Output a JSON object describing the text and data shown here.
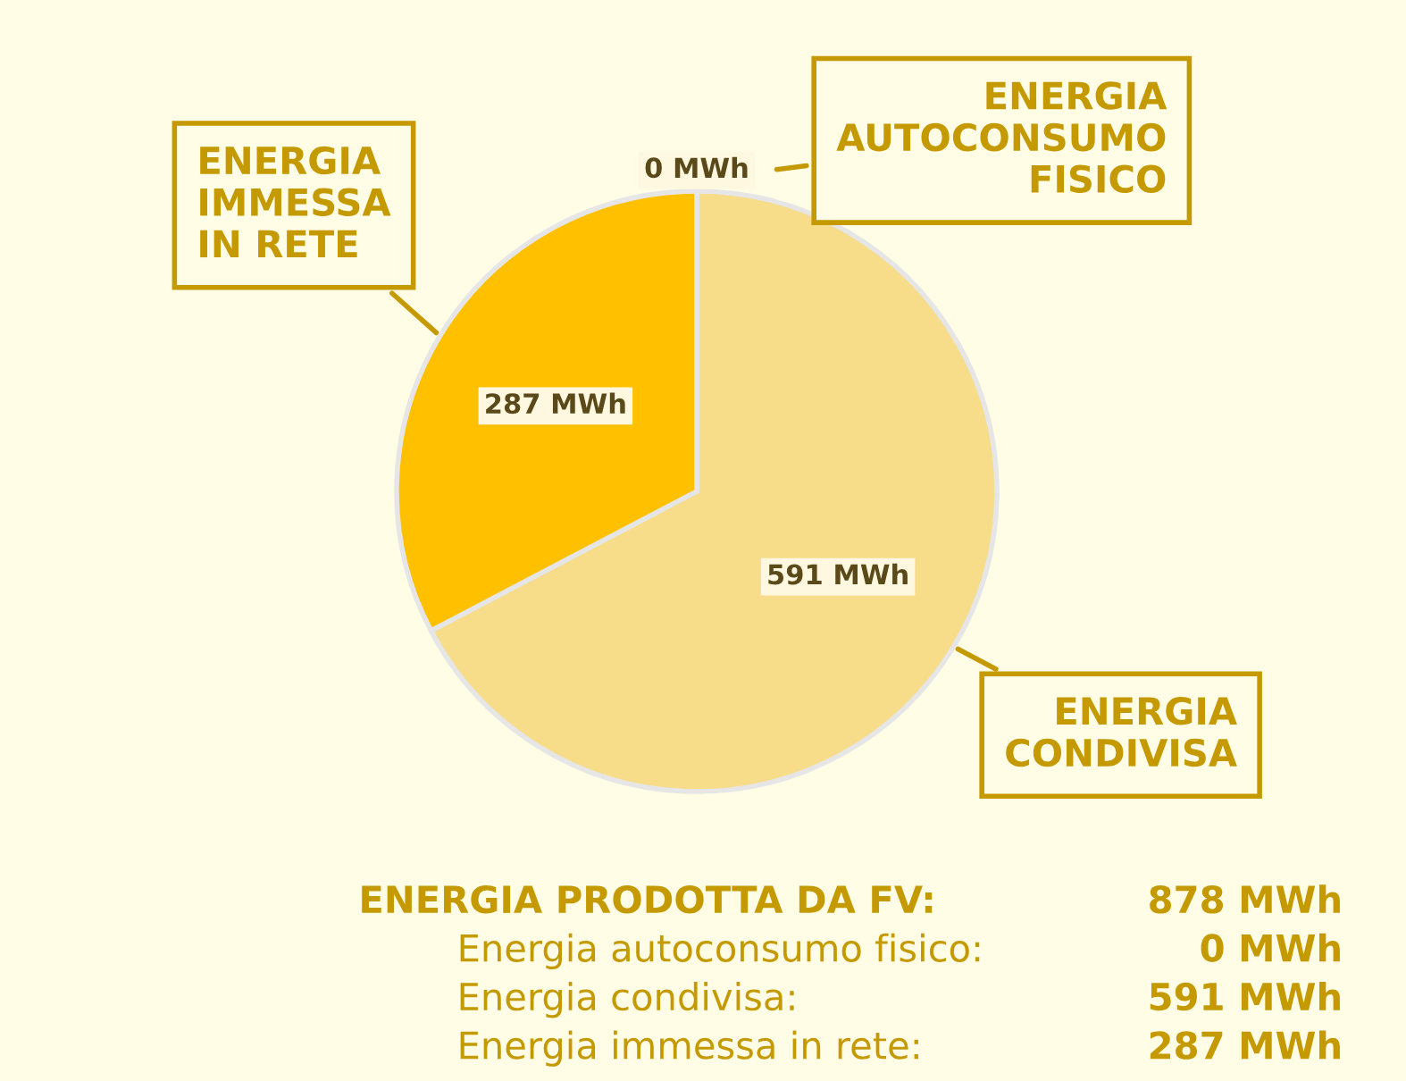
{
  "chart_data": {
    "type": "pie",
    "categories": [
      "ENERGIA\nAUTOCONSUMO\nFISICO",
      "ENERGIA\nCONDIVISA",
      "ENERGIA\nIMMESSA\nIN RETE"
    ],
    "values": [
      0,
      591,
      287
    ],
    "colors": [
      "#9e9e9e",
      "#f7dc8a",
      "#ffc000"
    ],
    "value_labels": [
      "0 MWh",
      "591 MWh",
      "287 MWh"
    ],
    "annotations": [
      "ENERGIA PRODOTTA DA FV:",
      "878 MWh",
      "Energia autoconsumo fisico:",
      "0 MWh",
      "Energia condivisa:",
      "591 MWh",
      "Energia immessa in rete:",
      "287 MWh"
    ]
  }
}
